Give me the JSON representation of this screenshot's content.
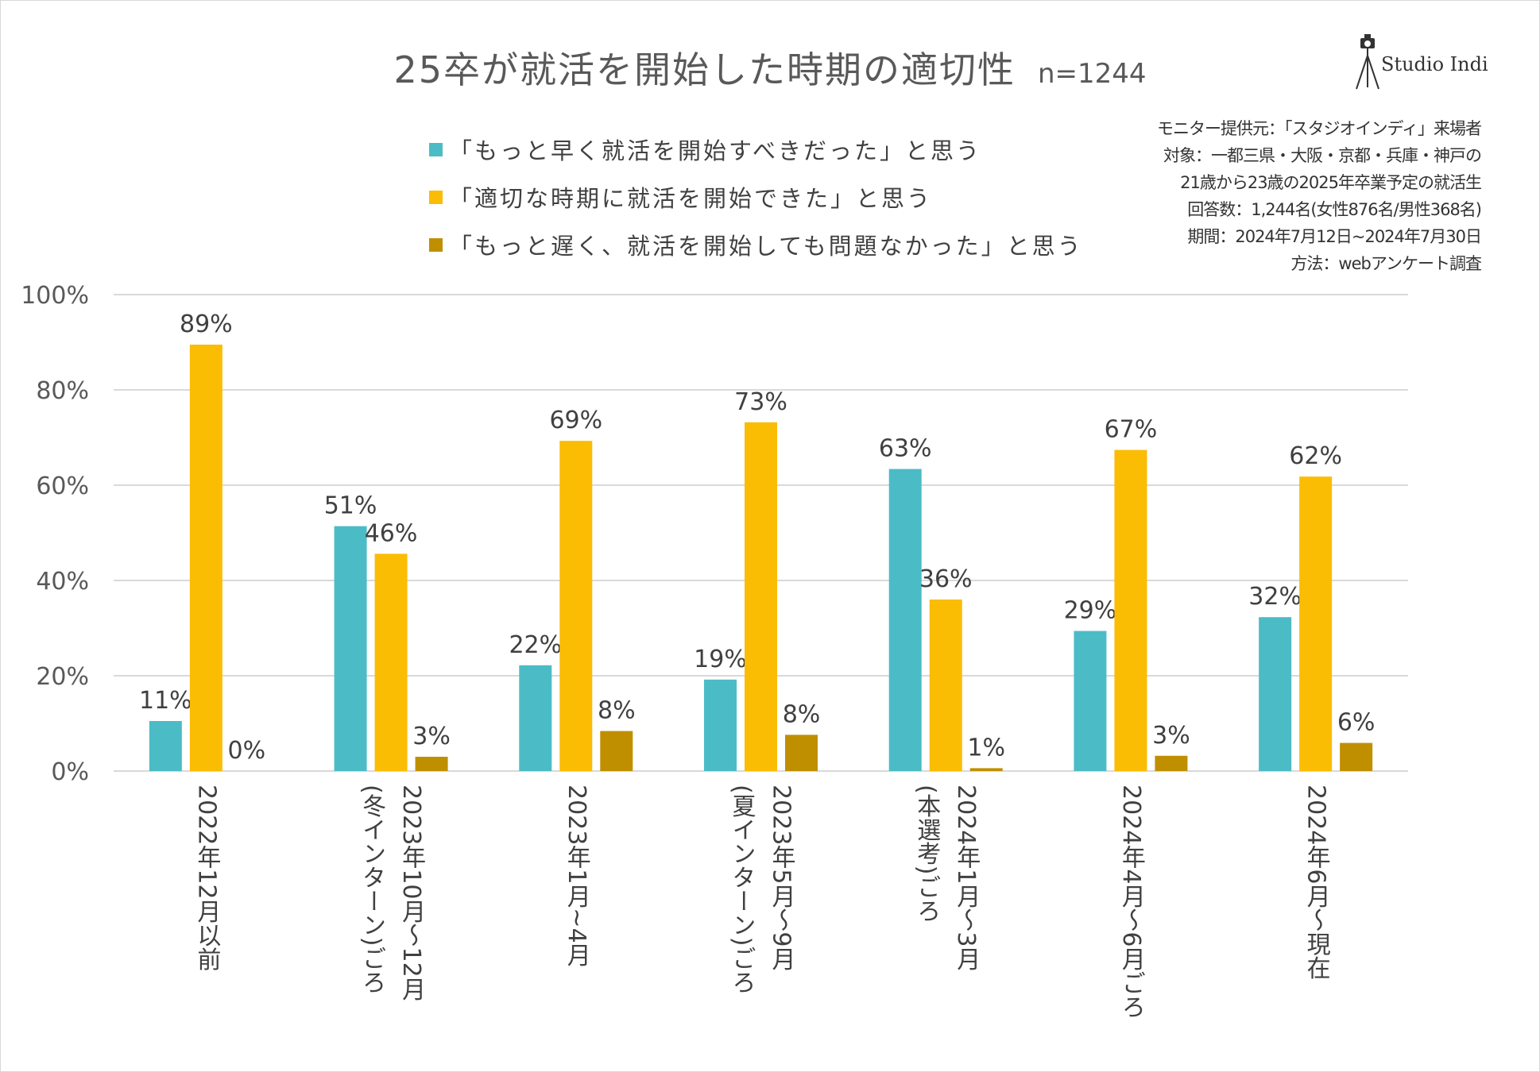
{
  "title": "25卒が就活を開始した時期の適切性",
  "sample_size": "n=1244",
  "brand": {
    "name": "Studio Indi",
    "icon": "camera-tripod-icon"
  },
  "notes": [
    "モニター提供元：「スタジオインディ」来場者",
    "対象：一都三県・大阪・京都・兵庫・神戸の",
    "21歳から23歳の2025年卒業予定の就活生",
    "回答数：1,244名(女性876名/男性368名)",
    "期間：2024年7月12日~2024年7月30日",
    "方法：webアンケート調査"
  ],
  "colors": {
    "series1": "#4BBCC6",
    "series2": "#FBBC04",
    "series3": "#BF8F00",
    "grid": "#d9d9d9",
    "text": "#404040"
  },
  "chart_data": {
    "type": "bar",
    "title": "25卒が就活を開始した時期の適切性",
    "categories": [
      {
        "lines": [
          "2022年12月以前"
        ]
      },
      {
        "lines": [
          "2023年10月～12月",
          "(冬インターン)ごろ"
        ]
      },
      {
        "lines": [
          "2023年1月~4月"
        ]
      },
      {
        "lines": [
          "2023年5月～9月",
          "(夏インターン)ごろ"
        ]
      },
      {
        "lines": [
          "2024年1月～3月",
          "(本選考)ごろ"
        ]
      },
      {
        "lines": [
          "2024年4月～6月ごろ"
        ]
      },
      {
        "lines": [
          "2024年6月～現在"
        ]
      }
    ],
    "series": [
      {
        "name": "「もっと早く就活を開始すべきだった」と思う",
        "values": [
          10.5,
          51.4,
          22.2,
          19.2,
          63.4,
          29.4,
          32.3
        ],
        "labels": [
          "11%",
          "51%",
          "22%",
          "19%",
          "63%",
          "29%",
          "32%"
        ]
      },
      {
        "name": "「適切な時期に就活を開始できた」と思う",
        "values": [
          89.5,
          45.6,
          69.3,
          73.2,
          36.0,
          67.4,
          61.8
        ],
        "labels": [
          "89%",
          "46%",
          "69%",
          "73%",
          "36%",
          "67%",
          "62%"
        ]
      },
      {
        "name": "「もっと遅く、就活を開始しても問題なかった」と思う",
        "values": [
          0,
          3.0,
          8.4,
          7.6,
          0.6,
          3.2,
          5.9
        ],
        "labels": [
          "0%",
          "3%",
          "8%",
          "8%",
          "1%",
          "3%",
          "6%"
        ]
      }
    ],
    "ylim": [
      0,
      100
    ],
    "yticks": [
      0,
      20,
      40,
      60,
      80,
      100
    ],
    "ytick_labels": [
      "0%",
      "20%",
      "40%",
      "60%",
      "80%",
      "100%"
    ],
    "grid": true,
    "legend": "top-center",
    "xlabel": "",
    "ylabel": ""
  }
}
